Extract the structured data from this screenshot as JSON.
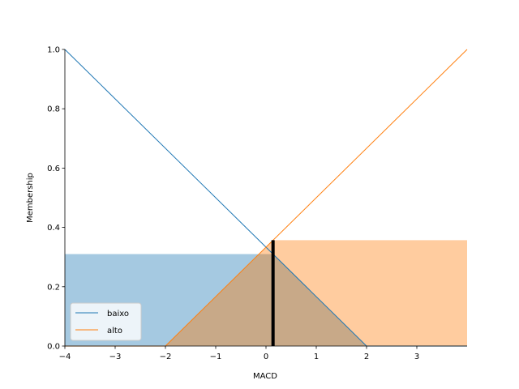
{
  "chart_data": {
    "type": "line",
    "xlabel": "MACD",
    "ylabel": "Membership",
    "xlim": [
      -4,
      4
    ],
    "ylim": [
      0,
      1
    ],
    "x_ticks": [
      -4,
      -3,
      -2,
      -1,
      0,
      1,
      2,
      3
    ],
    "y_ticks": [
      0.0,
      0.2,
      0.4,
      0.6,
      0.8,
      1.0
    ],
    "x_tick_labels": [
      "−4",
      "−3",
      "−2",
      "−1",
      "0",
      "1",
      "2",
      "3"
    ],
    "y_tick_labels": [
      "0.0",
      "0.2",
      "0.4",
      "0.6",
      "0.8",
      "1.0"
    ],
    "series": [
      {
        "name": "baixo",
        "color": "#1f77b4",
        "x": [
          -4,
          2,
          4
        ],
        "y": [
          1,
          0,
          0
        ]
      },
      {
        "name": "alto",
        "color": "#ff7f0e",
        "x": [
          -4,
          -2,
          4
        ],
        "y": [
          0,
          0,
          1
        ]
      }
    ],
    "activation_fills": [
      {
        "series": "baixo",
        "level": 0.31,
        "color": "#1f77b4"
      },
      {
        "series": "alto",
        "level": 0.357,
        "color": "#ff7f0e"
      }
    ],
    "aggregate_fill_color": "#c8a988",
    "input_marker": {
      "x": 0.14,
      "y": 0.357
    },
    "legend_position": "lower-left",
    "grid": false
  }
}
